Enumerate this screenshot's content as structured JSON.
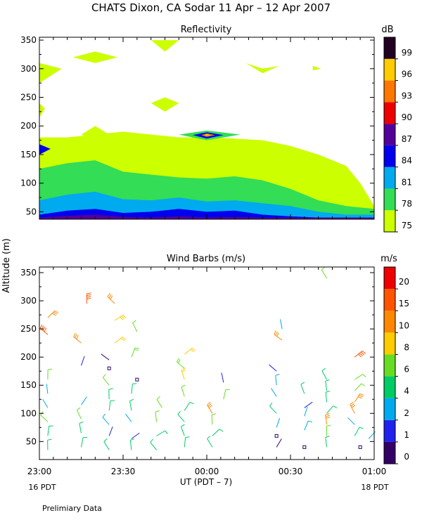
{
  "title": "CHATS Dixon, CA  Sodar  11 Apr – 12 Apr 2007",
  "ylabel_shared": "Altitude (m)",
  "xlabel": "UT  (PDT – 7)",
  "x_ticks": [
    "23:00",
    "23:30",
    "00:00",
    "00:30",
    "01:00"
  ],
  "x_minor_count": 24,
  "local_left": "16 PDT",
  "local_right": "18 PDT",
  "footnote": "Prelimiary Data",
  "chart_data": [
    {
      "type": "heatmap",
      "title": "Reflectivity",
      "y_ticks": [
        50,
        100,
        150,
        200,
        250,
        300,
        350
      ],
      "ylim": [
        37,
        355
      ],
      "xlim": [
        0,
        120
      ],
      "colorbar": {
        "unit": "dB",
        "levels": [
          75,
          78,
          81,
          84,
          87,
          90,
          93,
          96,
          99
        ],
        "colors": [
          "#ccff00",
          "#33dd55",
          "#00aaee",
          "#0000ee",
          "#550099",
          "#ee0000",
          "#ff7700",
          "#ffcc00",
          "#220022"
        ]
      },
      "bands": [
        {
          "level": 75,
          "top": [
            [
              0,
              180
            ],
            [
              10,
              180
            ],
            [
              20,
              185
            ],
            [
              30,
              190
            ],
            [
              40,
              185
            ],
            [
              50,
              180
            ],
            [
              60,
              180
            ],
            [
              70,
              178
            ],
            [
              80,
              175
            ],
            [
              90,
              165
            ],
            [
              100,
              150
            ],
            [
              110,
              130
            ],
            [
              115,
              100
            ],
            [
              120,
              60
            ]
          ]
        },
        {
          "level": 78,
          "top": [
            [
              0,
              125
            ],
            [
              10,
              135
            ],
            [
              20,
              140
            ],
            [
              30,
              120
            ],
            [
              40,
              115
            ],
            [
              50,
              110
            ],
            [
              60,
              108
            ],
            [
              70,
              112
            ],
            [
              80,
              105
            ],
            [
              90,
              90
            ],
            [
              100,
              70
            ],
            [
              110,
              60
            ],
            [
              120,
              55
            ]
          ]
        },
        {
          "level": 81,
          "top": [
            [
              0,
              70
            ],
            [
              10,
              80
            ],
            [
              20,
              85
            ],
            [
              30,
              72
            ],
            [
              40,
              70
            ],
            [
              50,
              75
            ],
            [
              60,
              68
            ],
            [
              70,
              70
            ],
            [
              80,
              65
            ],
            [
              90,
              60
            ],
            [
              100,
              50
            ],
            [
              110,
              45
            ],
            [
              120,
              45
            ]
          ]
        },
        {
          "level": 84,
          "top": [
            [
              0,
              45
            ],
            [
              10,
              52
            ],
            [
              20,
              55
            ],
            [
              30,
              48
            ],
            [
              40,
              50
            ],
            [
              50,
              55
            ],
            [
              60,
              50
            ],
            [
              70,
              52
            ],
            [
              80,
              45
            ],
            [
              90,
              42
            ],
            [
              100,
              40
            ],
            [
              110,
              40
            ],
            [
              120,
              40
            ]
          ]
        },
        {
          "level": 87,
          "top": [
            [
              0,
              40
            ],
            [
              10,
              43
            ],
            [
              20,
              45
            ],
            [
              30,
              41
            ],
            [
              40,
              40
            ],
            [
              50,
              42
            ],
            [
              60,
              40
            ],
            [
              70,
              41
            ],
            [
              80,
              40
            ],
            [
              90,
              40
            ],
            [
              100,
              40
            ],
            [
              110,
              40
            ],
            [
              120,
              40
            ]
          ]
        }
      ]
    },
    {
      "type": "scatter",
      "title": "Wind Barbs (m/s)",
      "y_ticks": [
        50,
        100,
        150,
        200,
        250,
        300,
        350
      ],
      "ylim": [
        18,
        360
      ],
      "xlim": [
        0,
        120
      ],
      "colorbar": {
        "unit": "m/s",
        "ticks": [
          0,
          1,
          2,
          4,
          6,
          8,
          10,
          15,
          20
        ],
        "colors": [
          "#330066",
          "#2222ee",
          "#00aaee",
          "#00cc66",
          "#66dd22",
          "#ffcc00",
          "#ff8800",
          "#ff5500",
          "#ee0000"
        ]
      },
      "times_min": [
        3,
        5,
        15,
        17,
        25,
        27,
        33,
        35,
        42,
        44,
        50,
        52,
        60,
        62,
        66,
        68,
        85,
        87,
        93,
        95,
        103,
        105,
        113,
        115
      ],
      "altitudes_m": [
        35,
        55,
        75,
        95,
        115,
        135,
        160,
        185,
        210,
        235,
        265,
        295,
        335
      ],
      "barbs": [
        {
          "t": 3,
          "z": 35,
          "ws": 3,
          "c": 3
        },
        {
          "t": 3,
          "z": 60,
          "ws": 4,
          "c": 3
        },
        {
          "t": 3,
          "z": 85,
          "ws": 5,
          "c": 4
        },
        {
          "t": 3,
          "z": 110,
          "ws": 2,
          "c": 2
        },
        {
          "t": 3,
          "z": 135,
          "ws": 2,
          "c": 2
        },
        {
          "t": 3,
          "z": 160,
          "ws": 5,
          "c": 4
        },
        {
          "t": 3,
          "z": 240,
          "ws": 12,
          "c": 7
        },
        {
          "t": 3,
          "z": 270,
          "ws": 11,
          "c": 6
        },
        {
          "t": 15,
          "z": 40,
          "ws": 4,
          "c": 3
        },
        {
          "t": 15,
          "z": 65,
          "ws": 3,
          "c": 3
        },
        {
          "t": 15,
          "z": 90,
          "ws": 5,
          "c": 4
        },
        {
          "t": 15,
          "z": 115,
          "ws": 2,
          "c": 2
        },
        {
          "t": 15,
          "z": 185,
          "ws": 1,
          "c": 1
        },
        {
          "t": 15,
          "z": 225,
          "ws": 10,
          "c": 6
        },
        {
          "t": 17,
          "z": 295,
          "ws": 14,
          "c": 7
        },
        {
          "t": 25,
          "z": 35,
          "ws": 3,
          "c": 3
        },
        {
          "t": 25,
          "z": 60,
          "ws": 1,
          "c": 1
        },
        {
          "t": 25,
          "z": 80,
          "ws": 3,
          "c": 2
        },
        {
          "t": 25,
          "z": 105,
          "ws": 4,
          "c": 3
        },
        {
          "t": 25,
          "z": 125,
          "ws": 3,
          "c": 3
        },
        {
          "t": 25,
          "z": 150,
          "ws": 5,
          "c": 4
        },
        {
          "t": 25,
          "z": 195,
          "ws": 1,
          "c": 0
        },
        {
          "t": 27,
          "z": 225,
          "ws": 8,
          "c": 5
        },
        {
          "t": 27,
          "z": 265,
          "ws": 9,
          "c": 5
        },
        {
          "t": 27,
          "z": 295,
          "ws": 10,
          "c": 6
        },
        {
          "t": 33,
          "z": 35,
          "ws": 4,
          "c": 3
        },
        {
          "t": 33,
          "z": 55,
          "ws": 1,
          "c": 1
        },
        {
          "t": 33,
          "z": 85,
          "ws": 2,
          "c": 2
        },
        {
          "t": 33,
          "z": 105,
          "ws": 3,
          "c": 3
        },
        {
          "t": 33,
          "z": 135,
          "ws": 3,
          "c": 3
        },
        {
          "t": 33,
          "z": 200,
          "ws": 6,
          "c": 4
        },
        {
          "t": 35,
          "z": 245,
          "ws": 5,
          "c": 4
        },
        {
          "t": 42,
          "z": 35,
          "ws": 3,
          "c": 3
        },
        {
          "t": 42,
          "z": 60,
          "ws": 3,
          "c": 3
        },
        {
          "t": 42,
          "z": 85,
          "ws": 4,
          "c": 4
        },
        {
          "t": 44,
          "z": 110,
          "ws": 5,
          "c": 4
        },
        {
          "t": 52,
          "z": 40,
          "ws": 4,
          "c": 3
        },
        {
          "t": 52,
          "z": 60,
          "ws": 3,
          "c": 3
        },
        {
          "t": 52,
          "z": 85,
          "ws": 4,
          "c": 3
        },
        {
          "t": 52,
          "z": 105,
          "ws": 3,
          "c": 3
        },
        {
          "t": 52,
          "z": 130,
          "ws": 4,
          "c": 4
        },
        {
          "t": 52,
          "z": 160,
          "ws": 8,
          "c": 5
        },
        {
          "t": 52,
          "z": 180,
          "ws": 7,
          "c": 4
        },
        {
          "t": 52,
          "z": 205,
          "ws": 8,
          "c": 5
        },
        {
          "t": 62,
          "z": 40,
          "ws": 3,
          "c": 3
        },
        {
          "t": 62,
          "z": 60,
          "ws": 3,
          "c": 3
        },
        {
          "t": 62,
          "z": 80,
          "ws": 5,
          "c": 4
        },
        {
          "t": 62,
          "z": 100,
          "ws": 9,
          "c": 6
        },
        {
          "t": 66,
          "z": 125,
          "ws": 4,
          "c": 4
        },
        {
          "t": 66,
          "z": 155,
          "ws": 1,
          "c": 1
        },
        {
          "t": 85,
          "z": 40,
          "ws": 1,
          "c": 0
        },
        {
          "t": 85,
          "z": 75,
          "ws": 2,
          "c": 2
        },
        {
          "t": 85,
          "z": 100,
          "ws": 3,
          "c": 3
        },
        {
          "t": 85,
          "z": 130,
          "ws": 2,
          "c": 2
        },
        {
          "t": 85,
          "z": 150,
          "ws": 3,
          "c": 2
        },
        {
          "t": 85,
          "z": 175,
          "ws": 1,
          "c": 1
        },
        {
          "t": 87,
          "z": 230,
          "ws": 9,
          "c": 6
        },
        {
          "t": 87,
          "z": 250,
          "ws": 2,
          "c": 2
        },
        {
          "t": 95,
          "z": 70,
          "ws": 3,
          "c": 2
        },
        {
          "t": 95,
          "z": 95,
          "ws": 2,
          "c": 2
        },
        {
          "t": 95,
          "z": 110,
          "ws": 1,
          "c": 1
        },
        {
          "t": 95,
          "z": 135,
          "ws": 4,
          "c": 3
        },
        {
          "t": 103,
          "z": 40,
          "ws": 3,
          "c": 3
        },
        {
          "t": 103,
          "z": 60,
          "ws": 4,
          "c": 4
        },
        {
          "t": 103,
          "z": 80,
          "ws": 9,
          "c": 6
        },
        {
          "t": 103,
          "z": 100,
          "ws": 3,
          "c": 3
        },
        {
          "t": 103,
          "z": 120,
          "ws": 3,
          "c": 3
        },
        {
          "t": 103,
          "z": 140,
          "ws": 4,
          "c": 3
        },
        {
          "t": 103,
          "z": 160,
          "ws": 4,
          "c": 3
        },
        {
          "t": 103,
          "z": 340,
          "ws": 5,
          "c": 4
        },
        {
          "t": 113,
          "z": 60,
          "ws": 3,
          "c": 3
        },
        {
          "t": 113,
          "z": 80,
          "ws": 2,
          "c": 2
        },
        {
          "t": 113,
          "z": 100,
          "ws": 9,
          "c": 6
        },
        {
          "t": 113,
          "z": 120,
          "ws": 9,
          "c": 6
        },
        {
          "t": 113,
          "z": 140,
          "ws": 5,
          "c": 4
        },
        {
          "t": 113,
          "z": 160,
          "ws": 5,
          "c": 4
        },
        {
          "t": 113,
          "z": 200,
          "ws": 14,
          "c": 7
        },
        {
          "t": 118,
          "z": 55,
          "ws": 2,
          "c": 2
        }
      ],
      "calm_markers": [
        {
          "t": 25,
          "z": 180,
          "c": 0
        },
        {
          "t": 35,
          "z": 160,
          "c": 0
        },
        {
          "t": 85,
          "z": 60,
          "c": 0
        },
        {
          "t": 95,
          "z": 40,
          "c": 0
        },
        {
          "t": 115,
          "z": 40,
          "c": 0
        }
      ]
    }
  ]
}
